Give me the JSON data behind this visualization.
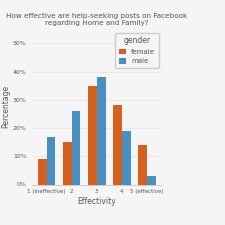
{
  "title": "How effective are help-seeking posts on Facebook\nregarding Home and Family?",
  "xlabel": "Effectivity",
  "ylabel": "Percentage",
  "categories": [
    "1 (ineffective)",
    "2",
    "3",
    "4",
    "5 (effective)"
  ],
  "female": [
    9,
    15,
    35,
    28,
    14
  ],
  "male": [
    17,
    26,
    38,
    19,
    3
  ],
  "female_color": "#d4611e",
  "male_color": "#4a8fc1",
  "ylim": [
    0,
    55
  ],
  "yticks": [
    0,
    10,
    20,
    30,
    40,
    50
  ],
  "ytick_labels": [
    "0%",
    "10%",
    "20%",
    "30%",
    "40%",
    "50%"
  ],
  "legend_title": "gender",
  "legend_female": "female",
  "legend_male": "male",
  "background_color": "#f5f5f5",
  "grid_color": "#e8e8e8",
  "text_color": "#555555"
}
